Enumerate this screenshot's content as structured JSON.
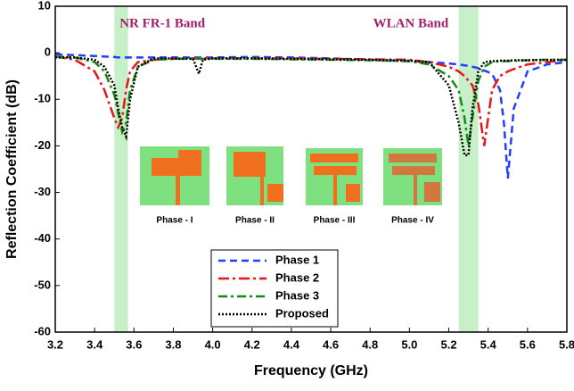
{
  "chart_data": {
    "type": "line",
    "xlabel": "Frequency (GHz)",
    "ylabel": "Reflection Coefficient (dB)",
    "xlim": [
      3.2,
      5.8
    ],
    "ylim": [
      -60,
      10
    ],
    "xticks": [
      3.2,
      3.4,
      3.6,
      3.8,
      {
        "value": 4,
        "label": "4.0"
      },
      4.2,
      4.4,
      4.6,
      4.8,
      {
        "value": 5,
        "label": "5.0"
      },
      5.2,
      5.4,
      5.6,
      5.8
    ],
    "yticks": [
      10,
      0,
      -10,
      -20,
      -30,
      -40,
      -50,
      -60
    ],
    "legend_position": "lower center",
    "bands": [
      {
        "label": "NR FR-1 Band",
        "xlim": [
          3.5,
          3.57
        ],
        "color": "#c8f0c8"
      },
      {
        "label": "WLAN Band",
        "xlim": [
          5.25,
          5.35
        ],
        "color": "#c8f0c8"
      }
    ],
    "insets": [
      "Phase - I",
      "Phase - II",
      "Phase - III",
      "Phase - IV"
    ],
    "x": [
      3.2,
      3.3,
      3.4,
      3.45,
      3.5,
      3.52,
      3.54,
      3.56,
      3.58,
      3.62,
      3.7,
      3.8,
      3.9,
      3.93,
      3.95,
      4.0,
      4.2,
      4.4,
      4.6,
      4.8,
      5.0,
      5.1,
      5.2,
      5.25,
      5.28,
      5.3,
      5.32,
      5.35,
      5.38,
      5.42,
      5.46,
      5.48,
      5.5,
      5.53,
      5.6,
      5.7,
      5.8
    ],
    "series": [
      {
        "name": "Phase 1",
        "color": "#1f3fff",
        "dash": "8,5",
        "values": [
          -0.3,
          -0.5,
          -0.7,
          -0.8,
          -0.9,
          -1,
          -1,
          -1,
          -1,
          -1,
          -1,
          -1,
          -1,
          -1,
          -1,
          -1,
          -0.9,
          -1,
          -1.2,
          -1.5,
          -1.8,
          -2,
          -2.3,
          -2.5,
          -2.7,
          -2.8,
          -3,
          -3.3,
          -3.8,
          -4.5,
          -8,
          -15,
          -27,
          -12,
          -4,
          -2.5,
          -2
        ]
      },
      {
        "name": "Phase 2",
        "color": "#e8141c",
        "dash": "12,4,3,4",
        "values": [
          -0.8,
          -1.5,
          -4,
          -8,
          -14,
          -16,
          -14,
          -8,
          -4,
          -2,
          -1.5,
          -1.3,
          -1.2,
          -1.2,
          -1.2,
          -1.2,
          -1.2,
          -1.2,
          -1.3,
          -1.4,
          -1.5,
          -2,
          -3,
          -4,
          -5,
          -6,
          -7,
          -11,
          -20,
          -8,
          -5,
          -4.5,
          -4,
          -3.5,
          -2.5,
          -2,
          -1.5
        ]
      },
      {
        "name": "Phase 3",
        "color": "#138a13",
        "dash": "10,4,3,4",
        "values": [
          -0.8,
          -1,
          -2,
          -4,
          -9,
          -13,
          -17,
          -15,
          -8,
          -3,
          -1.5,
          -1.3,
          -1.3,
          -1.3,
          -1.3,
          -1.3,
          -1.3,
          -1.4,
          -1.5,
          -1.6,
          -1.8,
          -2.5,
          -5,
          -8,
          -14,
          -20,
          -14,
          -6,
          -3,
          -2,
          -1.8,
          -1.8,
          -1.8,
          -1.7,
          -1.6,
          -1.5,
          -1.5
        ]
      },
      {
        "name": "Proposed",
        "color": "#000000",
        "dash": "2,2",
        "values": [
          -1,
          -1,
          -1.5,
          -3,
          -7,
          -12,
          -16,
          -18,
          -10,
          -3,
          -1.2,
          -1.2,
          -1.3,
          -4.5,
          -1.5,
          -1.2,
          -1.2,
          -1.3,
          -1.4,
          -1.5,
          -1.7,
          -2,
          -7,
          -15,
          -22,
          -22,
          -12,
          -4,
          -2,
          -1.8,
          -1.7,
          -1.7,
          -1.7,
          -1.6,
          -1.6,
          -1.5,
          -1.5
        ]
      }
    ]
  }
}
